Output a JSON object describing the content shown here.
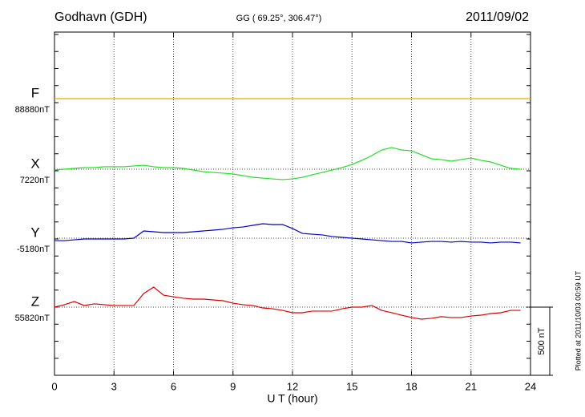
{
  "chart_data": {
    "type": "line",
    "title": "Godhavn (GDH)",
    "subtitle": "GG ( 69.25°, 306.47°)",
    "date": "2011/09/02",
    "x_label": "U T (hour)",
    "note": "Plotted at 2011/10/03 00:59 UT",
    "xlim": [
      0,
      24
    ],
    "xticks": [
      0,
      3,
      6,
      9,
      12,
      15,
      18,
      21,
      24
    ],
    "grid": true,
    "scale_bar": {
      "value": 500,
      "label": "500 nT"
    },
    "x": [
      0,
      0.5,
      1,
      1.5,
      2,
      2.5,
      3,
      3.5,
      4,
      4.5,
      5,
      5.5,
      6,
      6.5,
      7,
      7.5,
      8,
      8.5,
      9,
      9.5,
      10,
      10.5,
      11,
      11.5,
      12,
      12.5,
      13,
      13.5,
      14,
      14.5,
      15,
      15.5,
      16,
      16.5,
      17,
      17.5,
      18,
      18.5,
      19,
      19.5,
      20,
      20.5,
      21,
      21.5,
      22,
      22.5,
      23,
      23.5,
      24
    ],
    "series": [
      {
        "name": "F",
        "color": "#f0a800",
        "baseline": {
          "value": 88880,
          "label": "88880nT"
        },
        "values": [
          88880,
          88880,
          88880,
          88880,
          88880,
          88880,
          88880,
          88880,
          88880,
          88880,
          88880,
          88880,
          88880,
          88880,
          88880,
          88880,
          88880,
          88880,
          88880,
          88880,
          88880,
          88880,
          88880,
          88880,
          88880,
          88880,
          88880,
          88880,
          88880,
          88880,
          88880,
          88880,
          88880,
          88880,
          88880,
          88880,
          88880,
          88880,
          88880,
          88880,
          88880,
          88880,
          88880,
          88880,
          88880,
          88880,
          88880,
          88880,
          88880
        ]
      },
      {
        "name": "X",
        "color": "#22dd22",
        "baseline": {
          "value": 7220,
          "label": "7220nT"
        },
        "values": [
          7214,
          7220,
          7226,
          7232,
          7232,
          7238,
          7238,
          7238,
          7244,
          7249,
          7238,
          7232,
          7232,
          7226,
          7214,
          7202,
          7196,
          7191,
          7185,
          7173,
          7161,
          7155,
          7149,
          7144,
          7149,
          7161,
          7179,
          7196,
          7214,
          7232,
          7255,
          7285,
          7320,
          7361,
          7379,
          7361,
          7355,
          7326,
          7296,
          7291,
          7279,
          7291,
          7302,
          7285,
          7273,
          7249,
          7226,
          7220,
          null
        ]
      },
      {
        "name": "Y",
        "color": "#0000cc",
        "baseline": {
          "value": -5180,
          "label": "-5180nT"
        },
        "values": [
          -5198,
          -5198,
          -5192,
          -5186,
          -5186,
          -5186,
          -5186,
          -5186,
          -5180,
          -5127,
          -5133,
          -5139,
          -5139,
          -5139,
          -5133,
          -5127,
          -5121,
          -5115,
          -5104,
          -5098,
          -5086,
          -5074,
          -5080,
          -5080,
          -5109,
          -5145,
          -5151,
          -5156,
          -5168,
          -5174,
          -5180,
          -5186,
          -5192,
          -5198,
          -5204,
          -5204,
          -5215,
          -5209,
          -5204,
          -5204,
          -5209,
          -5204,
          -5209,
          -5209,
          -5215,
          -5209,
          -5209,
          -5215,
          null
        ]
      },
      {
        "name": "Z",
        "color": "#e00000",
        "baseline": {
          "value": 55820,
          "label": "55820nT"
        },
        "values": [
          55820,
          55838,
          55861,
          55832,
          55844,
          55838,
          55832,
          55832,
          55832,
          55920,
          55967,
          55908,
          55896,
          55885,
          55879,
          55879,
          55873,
          55867,
          55849,
          55838,
          55832,
          55814,
          55808,
          55796,
          55779,
          55779,
          55791,
          55791,
          55791,
          55808,
          55820,
          55820,
          55832,
          55796,
          55779,
          55761,
          55744,
          55732,
          55738,
          55750,
          55744,
          55744,
          55755,
          55761,
          55773,
          55779,
          55796,
          55796,
          null
        ]
      }
    ]
  }
}
